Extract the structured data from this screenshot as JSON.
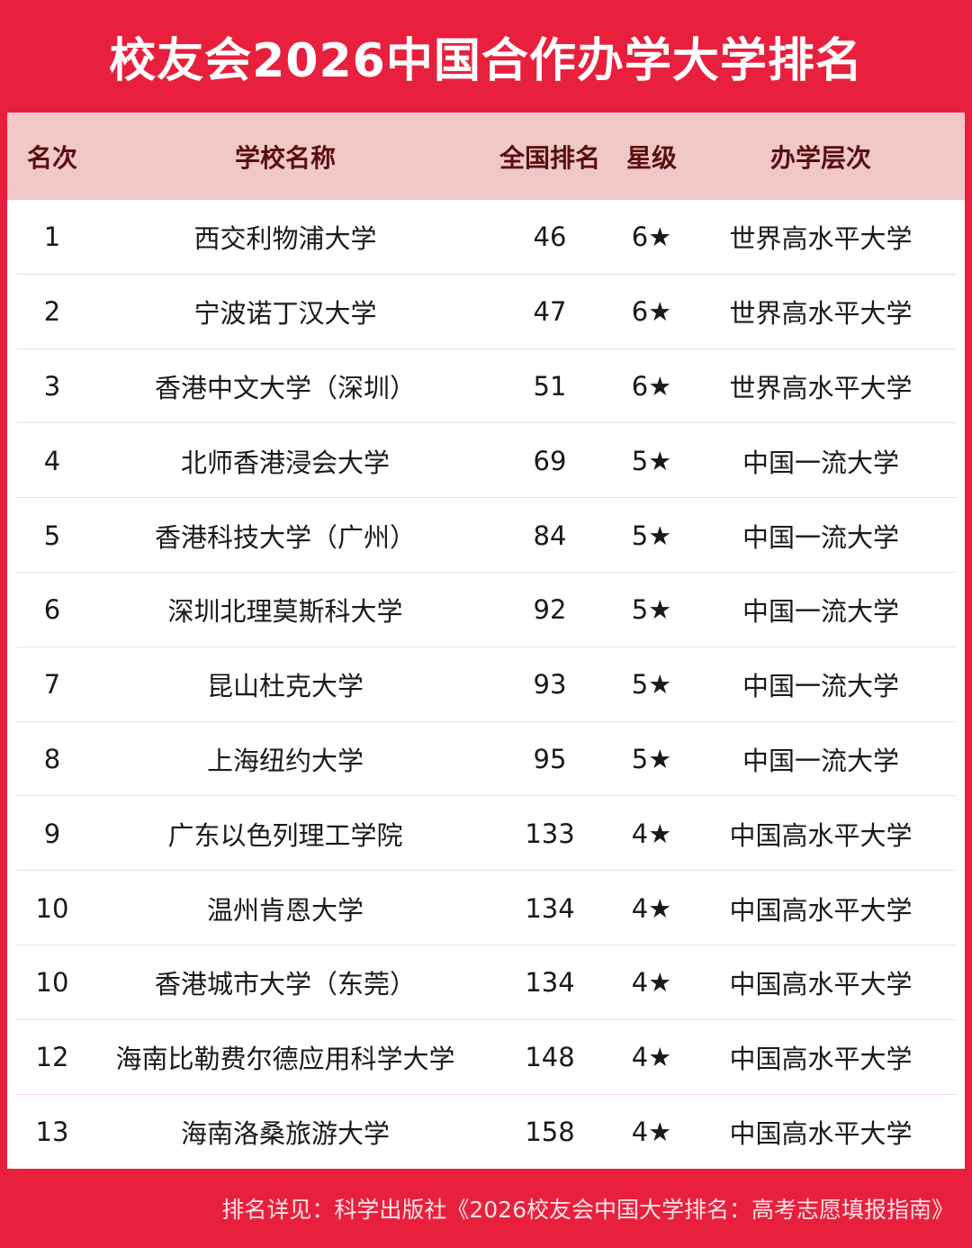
{
  "title": "校友会2026中国合作办学大学排名",
  "colors": {
    "brand_red": "#e8203d",
    "header_bg": "#f0c8c8",
    "header_text": "#5a0f0f"
  },
  "table": {
    "headers": [
      "名次",
      "学校名称",
      "全国排名",
      "星级",
      "办学层次"
    ],
    "rows": [
      [
        "1",
        "西交利物浦大学",
        "46",
        "6★",
        "世界高水平大学"
      ],
      [
        "2",
        "宁波诺丁汉大学",
        "47",
        "6★",
        "世界高水平大学"
      ],
      [
        "3",
        "香港中文大学（深圳）",
        "51",
        "6★",
        "世界高水平大学"
      ],
      [
        "4",
        "北师香港浸会大学",
        "69",
        "5★",
        "中国一流大学"
      ],
      [
        "5",
        "香港科技大学（广州）",
        "84",
        "5★",
        "中国一流大学"
      ],
      [
        "6",
        "深圳北理莫斯科大学",
        "92",
        "5★",
        "中国一流大学"
      ],
      [
        "7",
        "昆山杜克大学",
        "93",
        "5★",
        "中国一流大学"
      ],
      [
        "8",
        "上海纽约大学",
        "95",
        "5★",
        "中国一流大学"
      ],
      [
        "9",
        "广东以色列理工学院",
        "133",
        "4★",
        "中国高水平大学"
      ],
      [
        "10",
        "温州肯恩大学",
        "134",
        "4★",
        "中国高水平大学"
      ],
      [
        "10",
        "香港城市大学（东莞）",
        "134",
        "4★",
        "中国高水平大学"
      ],
      [
        "12",
        "海南比勒费尔德应用科学大学",
        "148",
        "4★",
        "中国高水平大学"
      ],
      [
        "13",
        "海南洛桑旅游大学",
        "158",
        "4★",
        "中国高水平大学"
      ]
    ]
  },
  "footer": "排名详见：科学出版社《2026校友会中国大学排名：高考志愿填报指南》"
}
